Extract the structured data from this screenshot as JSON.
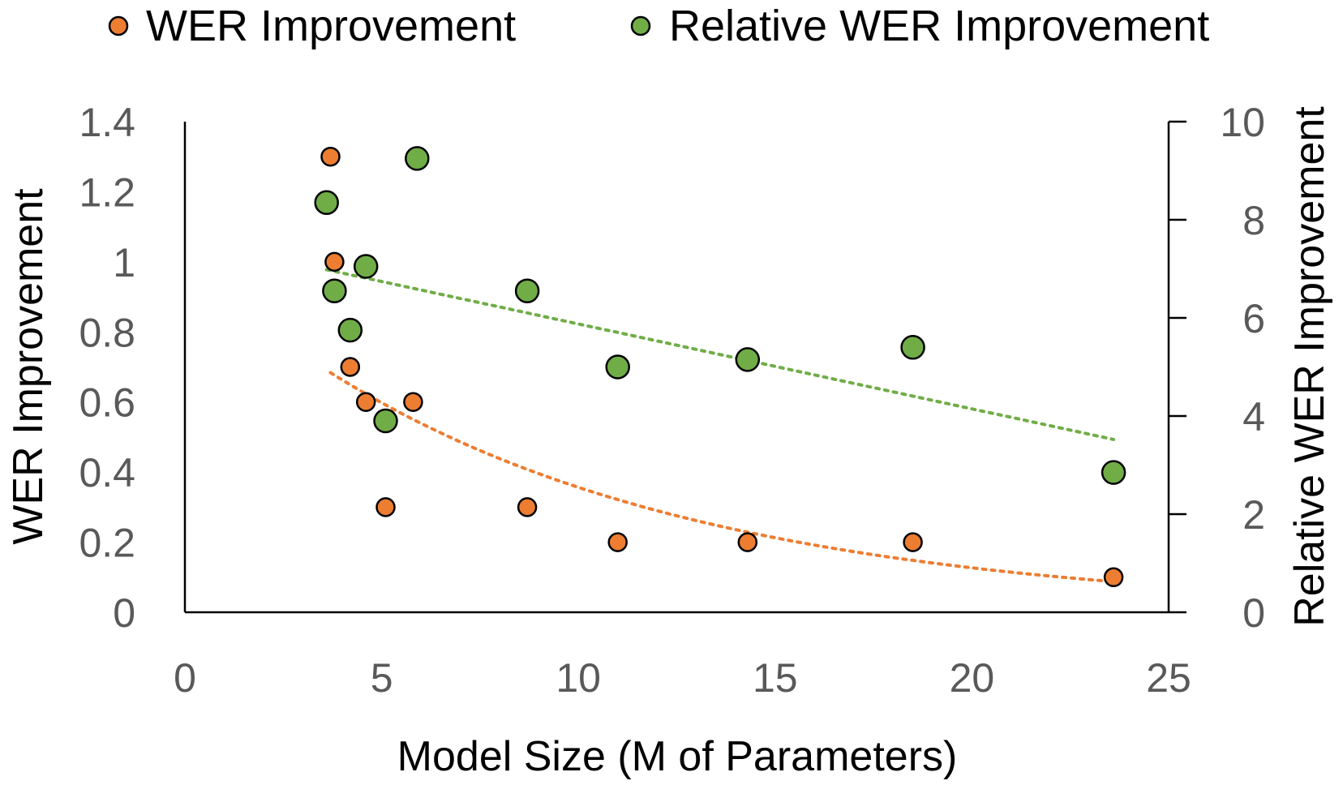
{
  "chart_data": {
    "type": "scatter",
    "xlabel": "Model Size (M of Parameters)",
    "ylabel": "WER Improvement",
    "y2label": "Relative WER Improvement",
    "xlim": [
      0,
      25
    ],
    "ylim": [
      0,
      1.4
    ],
    "y2lim": [
      0,
      10
    ],
    "xticks": [
      "0",
      "5",
      "10",
      "15",
      "20",
      "25"
    ],
    "yticks": [
      "0",
      "0.2",
      "0.4",
      "0.6",
      "0.8",
      "1",
      "1.2",
      "1.4"
    ],
    "y2ticks": [
      "0",
      "2",
      "4",
      "6",
      "8",
      "10"
    ],
    "legend_position": "top",
    "series": [
      {
        "name": "WER Improvement",
        "axis": "left",
        "color": "#ED7D31",
        "trendline": "exponential",
        "points": [
          {
            "x": 3.7,
            "y": 1.3
          },
          {
            "x": 3.8,
            "y": 1.0
          },
          {
            "x": 4.2,
            "y": 0.7
          },
          {
            "x": 4.6,
            "y": 0.6
          },
          {
            "x": 5.8,
            "y": 0.6
          },
          {
            "x": 5.1,
            "y": 0.3
          },
          {
            "x": 8.7,
            "y": 0.3
          },
          {
            "x": 11.0,
            "y": 0.2
          },
          {
            "x": 14.3,
            "y": 0.2
          },
          {
            "x": 18.5,
            "y": 0.2
          },
          {
            "x": 23.6,
            "y": 0.1
          }
        ]
      },
      {
        "name": "Relative WER Improvement",
        "axis": "right",
        "color": "#70AD47",
        "trendline": "linear",
        "points": [
          {
            "x": 5.9,
            "y": 9.25
          },
          {
            "x": 3.6,
            "y": 8.35
          },
          {
            "x": 4.6,
            "y": 7.05
          },
          {
            "x": 3.8,
            "y": 6.55
          },
          {
            "x": 8.7,
            "y": 6.55
          },
          {
            "x": 4.2,
            "y": 5.75
          },
          {
            "x": 11.0,
            "y": 5.0
          },
          {
            "x": 14.3,
            "y": 5.15
          },
          {
            "x": 18.5,
            "y": 5.4
          },
          {
            "x": 5.1,
            "y": 3.9
          },
          {
            "x": 23.6,
            "y": 2.85
          }
        ]
      }
    ]
  }
}
